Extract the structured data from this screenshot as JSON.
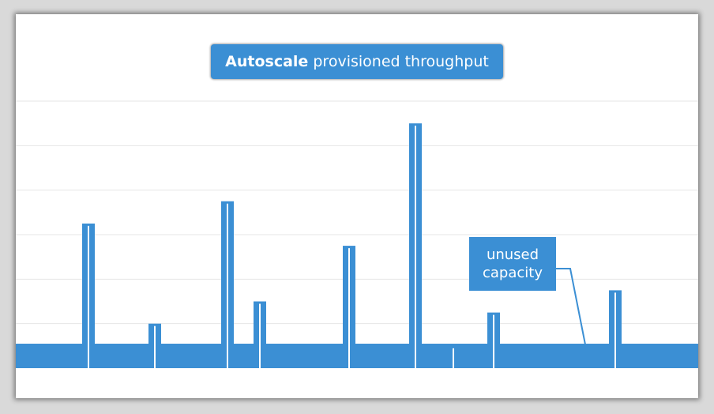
{
  "title": {
    "bold": "Autoscale",
    "rest": "provisioned throughput"
  },
  "chart_data": {
    "type": "area",
    "title": "Autoscale provisioned throughput",
    "xlabel": "",
    "ylabel": "",
    "ylim": [
      0,
      6
    ],
    "grid": true,
    "baseline": 0.55,
    "spikes": [
      {
        "x": 92,
        "value": 3.25
      },
      {
        "x": 176,
        "value": 1.0
      },
      {
        "x": 268,
        "value": 3.75
      },
      {
        "x": 309,
        "value": 1.5
      },
      {
        "x": 422,
        "value": 2.75
      },
      {
        "x": 506,
        "value": 5.5
      },
      {
        "x": 554,
        "value": 0.5
      },
      {
        "x": 605,
        "value": 1.25
      },
      {
        "x": 759,
        "value": 1.75
      }
    ],
    "annotation": {
      "line1": "unused",
      "line2": "capacity"
    },
    "colors": {
      "fill": "#3b8fd4",
      "grid": "#e6e6e6",
      "annotation_bg": "#3b8fd4"
    }
  }
}
